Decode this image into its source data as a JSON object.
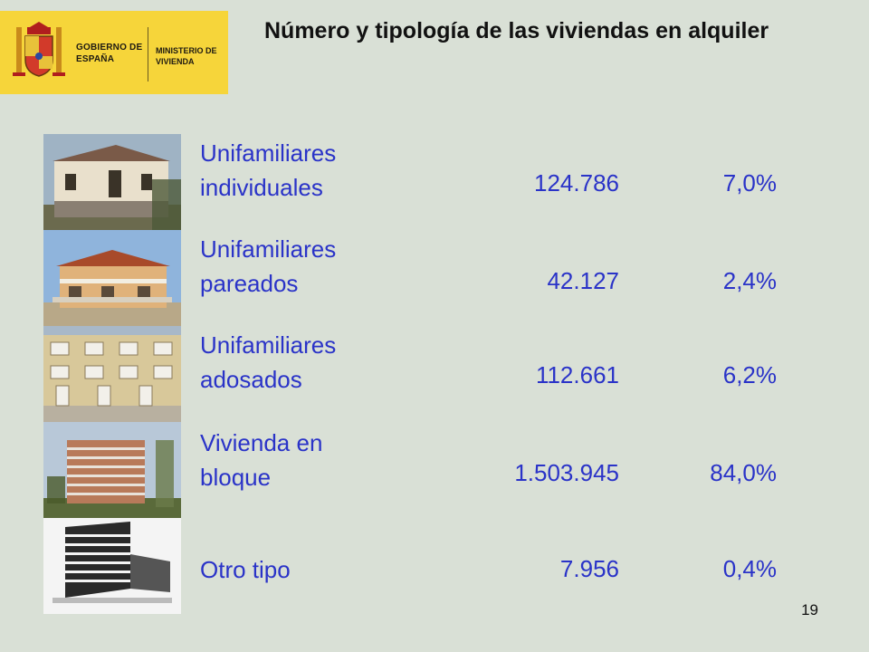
{
  "header": {
    "title": "Número y tipología de las viviendas en alquiler",
    "logo": {
      "government_text": "GOBIERNO DE ESPAÑA",
      "ministry_text": "MINISTERIO DE VIVIENDA",
      "color": "#f6d53a"
    }
  },
  "rows": [
    {
      "label": "Unifamiliares individuales",
      "count": "124.786",
      "percent": "7,0%",
      "image": "detached-house-photo"
    },
    {
      "label": "Unifamiliares pareados",
      "count": "42.127",
      "percent": "2,4%",
      "image": "semi-detached-house-photo"
    },
    {
      "label": "Unifamiliares adosados",
      "count": "112.661",
      "percent": "6,2%",
      "image": "terraced-house-photo"
    },
    {
      "label": "Vivienda en bloque",
      "count": "1.503.945",
      "percent": "84,0%",
      "image": "apartment-block-photo"
    },
    {
      "label": "Otro tipo",
      "count": "7.956",
      "percent": "0,4%",
      "image": "modern-building-sketch"
    }
  ],
  "page_number": "19",
  "colors": {
    "background": "#d9e0d6",
    "text_accent": "#2a33c8"
  }
}
